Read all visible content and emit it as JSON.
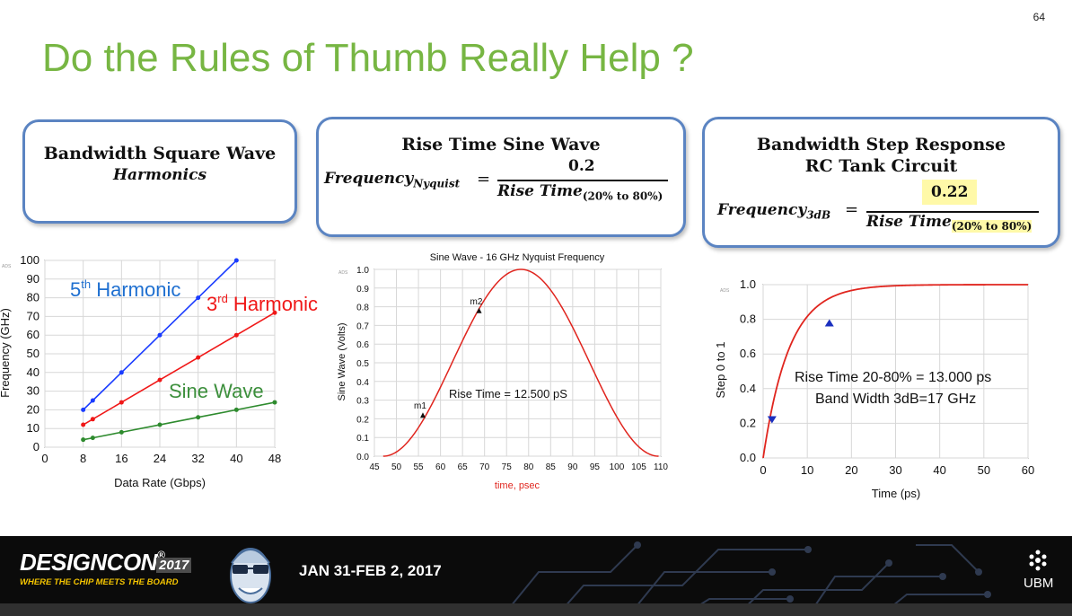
{
  "slide": {
    "page_number": "64",
    "title": "Do the Rules of Thumb Really Help ?"
  },
  "callouts": [
    {
      "heading": "Bandwidth Square Wave",
      "subheading": "Harmonics"
    },
    {
      "heading": "Rise Time Sine Wave",
      "eq_lhs": "Frequency",
      "eq_lhs_sub": "Nyquist",
      "eq_equals": "=",
      "eq_numerator": "0.2",
      "eq_denominator": "Rise Time",
      "eq_denominator_sub": "(20% to 80%)"
    },
    {
      "heading": "Bandwidth Step Response",
      "heading2": "RC Tank Circuit",
      "eq_lhs": "Frequency",
      "eq_lhs_sub": "3dB",
      "eq_equals": "=",
      "eq_numerator": "0.22",
      "eq_denominator": "Rise Time",
      "eq_denominator_sub": "(20% to 80%)",
      "highlight_color": "#fff9a8"
    }
  ],
  "chart_data": [
    {
      "type": "line",
      "xlabel": "Data Rate (Gbps)",
      "ylabel": "Frequency (GHz)",
      "corner_mark": "ADS",
      "xlim": [
        0,
        48
      ],
      "ylim": [
        0,
        100
      ],
      "xticks": [
        0,
        8,
        16,
        24,
        32,
        40,
        48
      ],
      "yticks": [
        0,
        10,
        20,
        30,
        40,
        50,
        60,
        70,
        80,
        90,
        100
      ],
      "grid": true,
      "series": [
        {
          "name": "5th Harmonic",
          "name_base": "5",
          "name_sup": "th",
          "name_rest": " Harmonic",
          "color": "#1a3cff",
          "label_color": "#1e6fd0",
          "x": [
            8,
            10,
            16,
            24,
            32,
            40
          ],
          "y": [
            20,
            25,
            40,
            60,
            80,
            100
          ]
        },
        {
          "name": "3rd Harmonic",
          "name_base": "3",
          "name_sup": "rd",
          "name_rest": " Harmonic",
          "color": "#f01818",
          "label_color": "#f01818",
          "x": [
            8,
            10,
            16,
            24,
            32,
            40,
            48
          ],
          "y": [
            12,
            15,
            24,
            36,
            48,
            60,
            72
          ]
        },
        {
          "name": "Sine Wave",
          "name_base": "Sine Wave",
          "name_sup": "",
          "name_rest": "",
          "color": "#2e8b2e",
          "label_color": "#3c8f3c",
          "x": [
            8,
            10,
            16,
            24,
            32,
            40,
            48
          ],
          "y": [
            4,
            5,
            8,
            12,
            16,
            20,
            24
          ]
        }
      ]
    },
    {
      "type": "line",
      "title": "Sine Wave - 16 GHz Nyquist Frequency",
      "xlabel": "time, psec",
      "xlabel_color": "#e0251e",
      "ylabel": "Sine Wave (Volts)",
      "corner_mark": "ADS",
      "xlim": [
        45,
        110
      ],
      "ylim": [
        0,
        1.0
      ],
      "xticks": [
        45,
        50,
        55,
        60,
        65,
        70,
        75,
        80,
        85,
        90,
        95,
        100,
        105,
        110
      ],
      "yticks": [
        0.0,
        0.1,
        0.2,
        0.3,
        0.4,
        0.5,
        0.6,
        0.7,
        0.8,
        0.9,
        1.0
      ],
      "ytick_labels": [
        "0.0",
        "0.1",
        "0.2",
        "0.3",
        "0.4",
        "0.5",
        "0.6",
        "0.7",
        "0.8",
        "0.9",
        "1.0"
      ],
      "grid": true,
      "series": [
        {
          "color": "#e0251e",
          "shape": "raised-cosine",
          "t_start": 47,
          "t_peak": 78.25,
          "t_end": 109.5,
          "amplitude": 1.0
        }
      ],
      "markers": [
        {
          "label": "m1",
          "x": 56.0,
          "y": 0.22
        },
        {
          "label": "m2",
          "x": 68.75,
          "y": 0.78
        }
      ],
      "annotation": "Rise Time = 12.500 pS"
    },
    {
      "type": "line",
      "xlabel": "Time (ps)",
      "ylabel": "Step 0 to 1",
      "corner_mark": "ADS",
      "xlim": [
        0,
        60
      ],
      "ylim": [
        0,
        1.0
      ],
      "xticks": [
        0,
        10,
        20,
        30,
        40,
        50,
        60
      ],
      "yticks": [
        0.0,
        0.2,
        0.4,
        0.6,
        0.8,
        1.0
      ],
      "ytick_labels": [
        "0.0",
        "0.2",
        "0.4",
        "0.6",
        "0.8",
        "1.0"
      ],
      "grid": true,
      "series": [
        {
          "color": "#e0251e",
          "shape": "rc-step",
          "tau_ps": 5.9
        }
      ],
      "markers": [
        {
          "x": 2,
          "y": 0.22,
          "color": "#1a2fbf"
        },
        {
          "x": 15,
          "y": 0.78,
          "color": "#1a2fbf"
        }
      ],
      "annotation_lines": [
        "Rise Time 20-80% = 13.000 ps",
        "Band Width 3dB=17 GHz"
      ]
    }
  ],
  "footer": {
    "logo_text": "DESIGNCON",
    "logo_registered": "®",
    "logo_year": "2017",
    "tagline": "WHERE THE CHIP MEETS THE BOARD",
    "dates": "JAN 31-FEB 2, 2017",
    "sponsor": "UBM",
    "background": "#0b0b0b"
  }
}
